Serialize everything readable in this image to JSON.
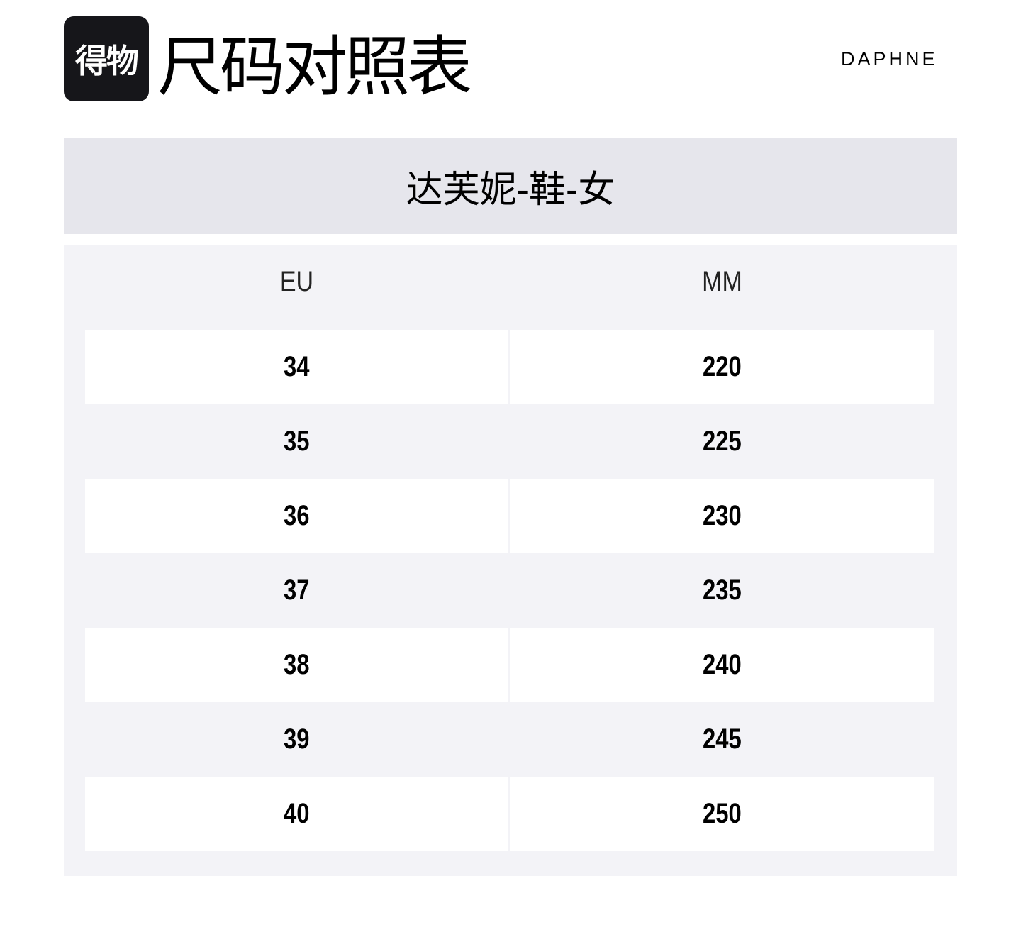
{
  "logo": {
    "text": "得物"
  },
  "title": "尺码对照表",
  "brand": "DAPHNE",
  "category": "达芙妮-鞋-女",
  "table": {
    "headers": [
      "EU",
      "MM"
    ],
    "rows": [
      [
        "34",
        "220"
      ],
      [
        "35",
        "225"
      ],
      [
        "36",
        "230"
      ],
      [
        "37",
        "235"
      ],
      [
        "38",
        "240"
      ],
      [
        "39",
        "245"
      ],
      [
        "40",
        "250"
      ]
    ]
  },
  "colors": {
    "band": "#e6e6ec",
    "table_bg": "#f3f3f7",
    "logo_bg": "#16161a"
  }
}
